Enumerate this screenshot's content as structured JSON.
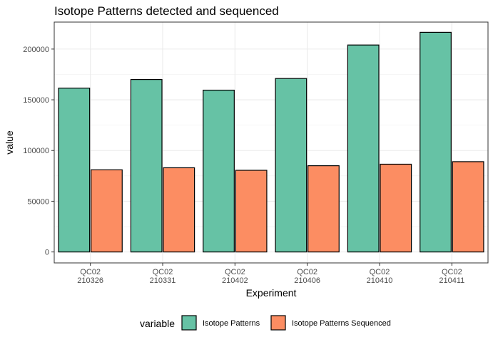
{
  "chart_data": {
    "type": "bar",
    "title": "Isotope Patterns detected and sequenced",
    "xlabel": "Experiment",
    "ylabel": "value",
    "categories": [
      [
        "QC02",
        "210326"
      ],
      [
        "QC02",
        "210331"
      ],
      [
        "QC02",
        "210402"
      ],
      [
        "QC02",
        "210406"
      ],
      [
        "QC02",
        "210410"
      ],
      [
        "QC02",
        "210411"
      ]
    ],
    "series": [
      {
        "name": "Isotope Patterns",
        "color": "#66c2a5",
        "values": [
          161500,
          170000,
          159500,
          171000,
          204000,
          216500
        ]
      },
      {
        "name": "Isotope Patterns Sequenced",
        "color": "#fc8d62",
        "values": [
          81000,
          83000,
          80500,
          85000,
          86500,
          89000
        ]
      }
    ],
    "ylim": [
      -10800,
      226600
    ],
    "yticks": [
      0,
      50000,
      100000,
      150000,
      200000
    ],
    "ytick_labels": [
      "0",
      "50000",
      "100000",
      "150000",
      "200000"
    ],
    "grid": true,
    "legend": {
      "title": "variable",
      "position": "bottom"
    }
  }
}
